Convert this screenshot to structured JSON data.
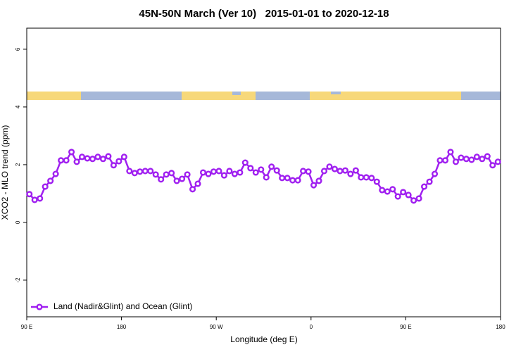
{
  "chart_data": {
    "type": "line",
    "title": "45N-50N March (Ver 10)   2015-01-01 to 2020-12-18",
    "x_label": "Longitude (deg E)",
    "y_label": "XCO2 - MLO trend (ppm)",
    "xlim": [
      90,
      540
    ],
    "xticks": [
      {
        "value": 90,
        "label": "90 E"
      },
      {
        "value": 180,
        "label": "180"
      },
      {
        "value": 270,
        "label": "90 W"
      },
      {
        "value": 360,
        "label": "0"
      },
      {
        "value": 450,
        "label": "90 E"
      },
      {
        "value": 540,
        "label": "180"
      }
    ],
    "ylim": [
      -3.27,
      6.73
    ],
    "yticks": [
      -2,
      0,
      2,
      4,
      6
    ],
    "legend": "bottom-left",
    "x": [
      92.5,
      97.5,
      102.5,
      107.5,
      112.5,
      117.5,
      122.5,
      127.5,
      132.5,
      137.5,
      142.5,
      147.5,
      152.5,
      157.5,
      162.5,
      167.5,
      172.5,
      177.5,
      182.5,
      187.5,
      192.5,
      197.5,
      202.5,
      207.5,
      212.5,
      217.5,
      222.5,
      227.5,
      232.5,
      237.5,
      242.5,
      247.5,
      252.5,
      257.5,
      262.5,
      267.5,
      272.5,
      277.5,
      282.5,
      287.5,
      292.5,
      297.5,
      302.5,
      307.5,
      312.5,
      317.5,
      322.5,
      327.5,
      332.5,
      337.5,
      342.5,
      347.5,
      352.5,
      357.5,
      362.5,
      367.5,
      372.5,
      377.5,
      382.5,
      387.5,
      392.5,
      397.5,
      402.5,
      407.5,
      412.5,
      417.5,
      422.5,
      427.5,
      432.5,
      437.5,
      442.5,
      447.5,
      452.5,
      457.5,
      462.5,
      467.5,
      472.5,
      477.5,
      482.5,
      487.5,
      492.5,
      497.5,
      502.5,
      507.5,
      512.5,
      517.5,
      522.5,
      527.5,
      532.5,
      537.5
    ],
    "series": [
      {
        "name": "Land (Nadir&Glint) and Ocean (Glint)",
        "color": "#a020f0",
        "values": [
          0.98,
          0.78,
          0.83,
          1.24,
          1.44,
          1.68,
          2.15,
          2.15,
          2.44,
          2.1,
          2.27,
          2.22,
          2.2,
          2.27,
          2.2,
          2.29,
          1.98,
          2.12,
          2.27,
          1.78,
          1.71,
          1.76,
          1.78,
          1.78,
          1.66,
          1.49,
          1.66,
          1.71,
          1.44,
          1.51,
          1.66,
          1.15,
          1.34,
          1.73,
          1.68,
          1.76,
          1.78,
          1.63,
          1.78,
          1.68,
          1.73,
          2.07,
          1.88,
          1.73,
          1.83,
          1.56,
          1.93,
          1.8,
          1.54,
          1.54,
          1.46,
          1.46,
          1.78,
          1.76,
          1.29,
          1.44,
          1.78,
          1.93,
          1.85,
          1.78,
          1.8,
          1.68,
          1.8,
          1.56,
          1.56,
          1.54,
          1.41,
          1.12,
          1.07,
          1.15,
          0.9,
          1.05,
          0.95,
          0.76,
          0.83,
          1.24,
          1.41,
          1.68,
          2.15,
          2.15,
          2.44,
          2.1,
          2.24,
          2.2,
          2.17,
          2.27,
          2.2,
          2.29,
          1.98,
          2.1
        ]
      }
    ]
  }
}
